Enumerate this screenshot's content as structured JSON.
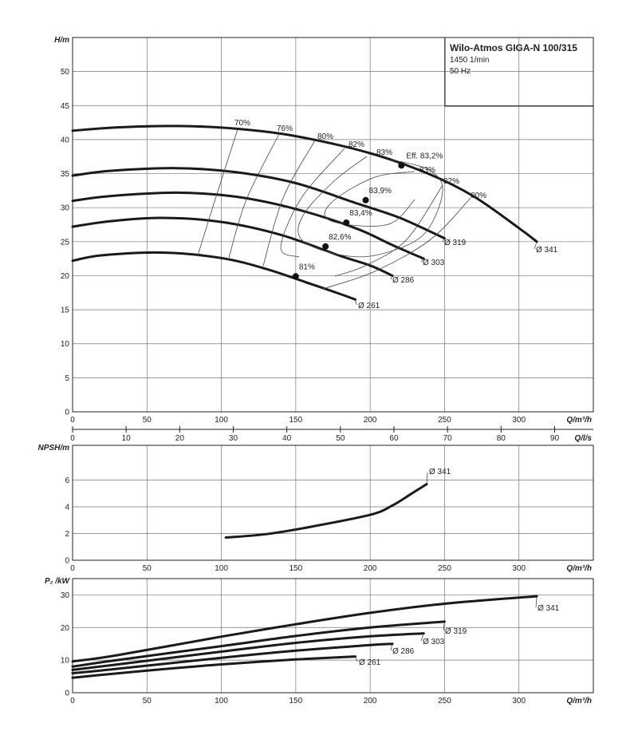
{
  "title_box": {
    "title": "Wilo-Atmos GIGA-N 100/315",
    "speed": "1450 1/min",
    "frequency": "50 Hz"
  },
  "chart_data": [
    {
      "type": "line",
      "id": "head",
      "ylabel": "H/m",
      "xlabel": "Q/m³/h",
      "xlim": [
        0,
        350
      ],
      "ylim": [
        0,
        55
      ],
      "x_ticks": [
        0,
        50,
        100,
        150,
        200,
        250,
        300
      ],
      "y_ticks": [
        0,
        5,
        10,
        15,
        20,
        25,
        30,
        35,
        40,
        45,
        50
      ],
      "grid": true,
      "secondary_x": {
        "label": "Q/l/s",
        "ticks": [
          0,
          10,
          20,
          30,
          40,
          50,
          60,
          70,
          80,
          90
        ]
      },
      "series": [
        {
          "name": "Ø 341",
          "x": [
            0,
            30,
            70,
            110,
            150,
            200,
            240,
            270,
            300,
            312
          ],
          "y": [
            41.3,
            41.8,
            42.0,
            41.6,
            40.5,
            38.0,
            34.9,
            31.6,
            27.0,
            25.0
          ]
        },
        {
          "name": "Ø 319",
          "x": [
            0,
            25,
            70,
            110,
            150,
            190,
            220,
            250
          ],
          "y": [
            34.7,
            35.4,
            35.8,
            35.2,
            33.6,
            30.7,
            28.5,
            25.5
          ]
        },
        {
          "name": "Ø 303",
          "x": [
            0,
            25,
            70,
            110,
            150,
            190,
            215,
            236
          ],
          "y": [
            31.0,
            31.7,
            32.2,
            31.6,
            29.8,
            27.0,
            24.5,
            22.5
          ]
        },
        {
          "name": "Ø 286",
          "x": [
            0,
            25,
            60,
            100,
            140,
            180,
            200,
            215
          ],
          "y": [
            27.2,
            28.0,
            28.5,
            27.9,
            26.0,
            22.9,
            21.5,
            20.0
          ]
        },
        {
          "name": "Ø 261",
          "x": [
            0,
            20,
            60,
            100,
            130,
            160,
            180,
            190
          ],
          "y": [
            22.2,
            23.0,
            23.4,
            22.6,
            21.0,
            18.8,
            17.3,
            16.5
          ]
        }
      ],
      "bep_points": [
        {
          "label": "Eff. 83,2%",
          "x": 221,
          "y": 36.2
        },
        {
          "label": "83,9%",
          "x": 197,
          "y": 31.1
        },
        {
          "label": "83,4%",
          "x": 184,
          "y": 27.8
        },
        {
          "label": "82,6%",
          "x": 170,
          "y": 24.3
        },
        {
          "label": "81%",
          "x": 150,
          "y": 19.9
        }
      ],
      "efficiency_labels": [
        "70%",
        "76%",
        "80%",
        "82%",
        "83%",
        "83%",
        "82%",
        "80%"
      ]
    },
    {
      "type": "line",
      "id": "npsh",
      "ylabel": "NPSH/m",
      "xlabel": "Q/m³/h",
      "xlim": [
        0,
        350
      ],
      "ylim": [
        0,
        8
      ],
      "x_ticks": [
        0,
        50,
        100,
        150,
        200,
        250,
        300
      ],
      "y_ticks": [
        0,
        2,
        4,
        6
      ],
      "grid": true,
      "series": [
        {
          "name": "Ø 341",
          "x": [
            103,
            130,
            160,
            200,
            215,
            228,
            238
          ],
          "y": [
            1.7,
            1.95,
            2.5,
            3.4,
            4.1,
            5.0,
            5.7
          ]
        }
      ]
    },
    {
      "type": "line",
      "id": "power",
      "ylabel": "P₂ /kW",
      "xlabel": "Q/m³/h",
      "xlim": [
        0,
        350
      ],
      "ylim": [
        0,
        35
      ],
      "x_ticks": [
        0,
        50,
        100,
        150,
        200,
        250,
        300
      ],
      "y_ticks": [
        0,
        10,
        20,
        30
      ],
      "grid": true,
      "series": [
        {
          "name": "Ø 341",
          "x": [
            0,
            30,
            100,
            150,
            200,
            250,
            312
          ],
          "y": [
            9.6,
            11.5,
            17.2,
            21.0,
            24.5,
            27.3,
            29.6
          ]
        },
        {
          "name": "Ø 319",
          "x": [
            0,
            25,
            100,
            150,
            200,
            250
          ],
          "y": [
            8.0,
            9.7,
            14.3,
            17.4,
            20.0,
            21.8
          ]
        },
        {
          "name": "Ø 303",
          "x": [
            0,
            25,
            100,
            150,
            200,
            236
          ],
          "y": [
            7.0,
            8.4,
            12.6,
            15.3,
            17.3,
            18.2
          ]
        },
        {
          "name": "Ø 286",
          "x": [
            0,
            25,
            100,
            150,
            200,
            215
          ],
          "y": [
            6.0,
            7.1,
            10.7,
            12.9,
            14.6,
            15.0
          ]
        },
        {
          "name": "Ø 261",
          "x": [
            0,
            20,
            60,
            100,
            150,
            190
          ],
          "y": [
            4.6,
            5.5,
            7.2,
            8.7,
            10.2,
            11.1
          ]
        }
      ]
    }
  ]
}
